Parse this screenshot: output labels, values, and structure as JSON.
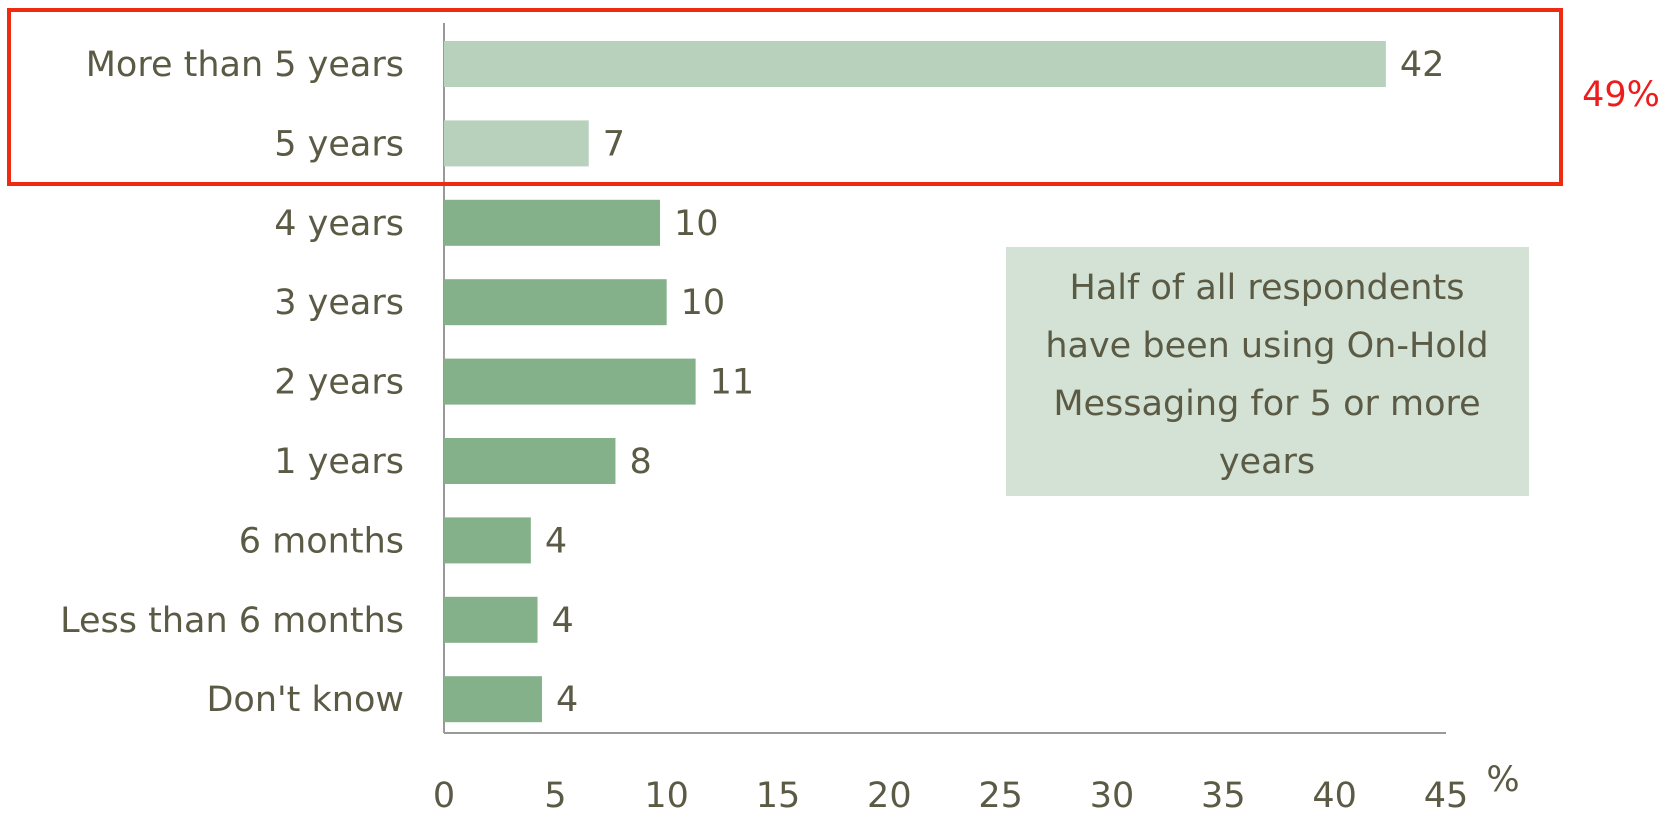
{
  "chart_data": {
    "type": "hbar",
    "categories": [
      "More than 5 years",
      "5 years",
      "4 years",
      "3 years",
      "2 years",
      "1 years",
      "6 months",
      "Less than 6 months",
      "Don't know"
    ],
    "values": [
      42.3,
      6.5,
      9.7,
      10,
      11.3,
      7.7,
      3.9,
      4.2,
      4.4
    ],
    "value_labels": [
      "42",
      "7",
      "10",
      "10",
      "11",
      "8",
      "4",
      "4",
      "4"
    ],
    "colors": [
      "#b8d1bc",
      "#b8d1bc",
      "#84b08a",
      "#84b08a",
      "#84b08a",
      "#84b08a",
      "#84b08a",
      "#84b08a",
      "#84b08a"
    ],
    "xlim": [
      0,
      45
    ],
    "xticks": [
      0,
      5,
      10,
      15,
      20,
      25,
      30,
      35,
      40,
      45
    ],
    "x_unit": "%",
    "highlight_label": "49%",
    "annotation": [
      "Half of all respondents",
      "have been using On-Hold",
      "Messaging for 5 or more",
      "years"
    ]
  }
}
